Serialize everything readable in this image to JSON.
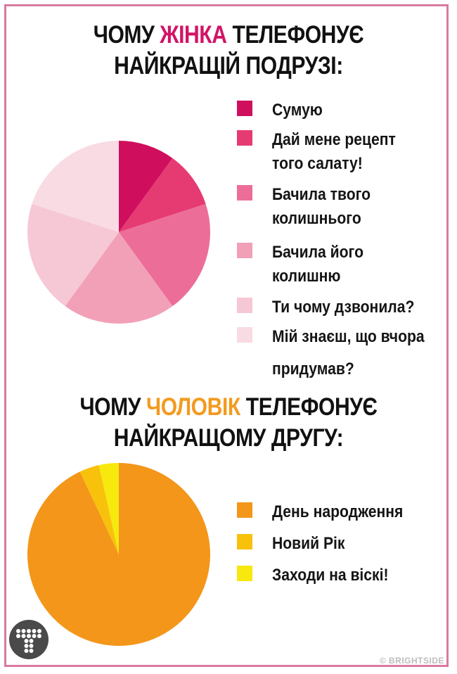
{
  "chart_data": [
    {
      "type": "pie",
      "title_parts": [
        "ЧОМУ ",
        "ЖІНКА",
        " ТЕЛЕФОНУЄ",
        "НАЙКРАЩІЙ ПОДРУЗІ:"
      ],
      "categories": [
        "Сумую",
        "Дай мене рецепт того салату!",
        "Бачила твого колишнього",
        "Бачила його колишню",
        "Ти чому дзвонила?",
        "Мій знаєш, що вчора придумав?"
      ],
      "values": [
        10,
        10,
        20,
        20,
        20,
        20
      ],
      "colors": [
        "#cf0f5d",
        "#e63a72",
        "#ec6e98",
        "#f2a0b8",
        "#f6c7d4",
        "#f8dbe3"
      ],
      "legend": "right"
    },
    {
      "type": "pie",
      "title_parts": [
        "ЧОМУ ",
        "ЧОЛОВІК",
        " ТЕЛЕФОНУЄ",
        "НАЙКРАЩОМУ ДРУГУ:"
      ],
      "categories": [
        "День народження",
        "Новий Рік",
        "Заходи на віскі!"
      ],
      "values": [
        93,
        3.5,
        3.5
      ],
      "colors": [
        "#f3961a",
        "#f8c10c",
        "#f7e80e"
      ],
      "legend": "right"
    }
  ],
  "logo": {
    "letter": "T",
    "icon": "brightside-t-logo"
  },
  "credit": "© BRIGHTSIDE"
}
